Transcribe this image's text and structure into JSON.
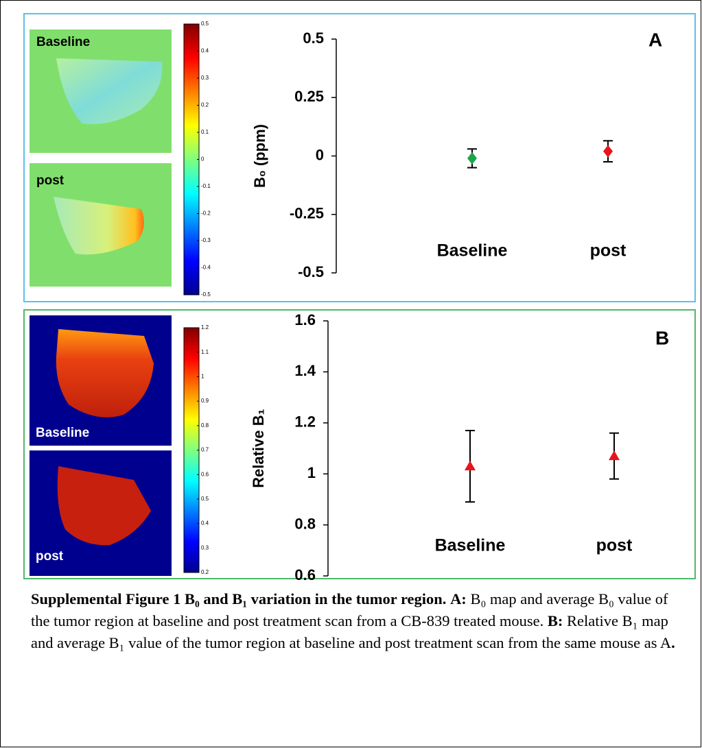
{
  "panels": [
    {
      "letter": "A",
      "image_labels": [
        "Baseline",
        "post"
      ],
      "colorbar_lim": [
        -0.5,
        0.5
      ],
      "colorbar_ticks": [
        0.5,
        0.4,
        0.3,
        0.2,
        0.1,
        0,
        -0.1,
        -0.2,
        -0.3,
        -0.4,
        -0.5
      ]
    },
    {
      "letter": "B",
      "image_labels": [
        "Baseline",
        "post"
      ],
      "colorbar_lim": [
        0.2,
        1.2
      ],
      "colorbar_ticks": [
        1.2,
        1.1,
        1,
        0.9,
        0.8,
        0.7,
        0.6,
        0.5,
        0.4,
        0.3,
        0.2
      ]
    }
  ],
  "chart_data": [
    {
      "type": "errorbar",
      "ylabel": "B₀ (ppm)",
      "categories": [
        "Baseline",
        "post"
      ],
      "values": [
        -0.01,
        0.02
      ],
      "errors": [
        0.04,
        0.045
      ],
      "colors": [
        "#1aa64a",
        "#e8141c"
      ],
      "marker": "diamond",
      "ylim": [
        -0.5,
        0.5
      ],
      "yticks": [
        -0.5,
        -0.25,
        0,
        0.25,
        0.5
      ]
    },
    {
      "type": "errorbar",
      "ylabel": "Relative B₁",
      "categories": [
        "Baseline",
        "post"
      ],
      "values": [
        1.03,
        1.07
      ],
      "errors": [
        0.14,
        0.09
      ],
      "colors": [
        "#e8141c",
        "#e8141c"
      ],
      "marker": "triangle",
      "ylim": [
        0.6,
        1.6
      ],
      "yticks": [
        0.6,
        0.8,
        1,
        1.2,
        1.4,
        1.6
      ]
    }
  ],
  "caption": [
    "Supplemental Figure 1 B₀ and B₁ variation in the tumor region.",
    "A:",
    "B₀ map and average B₀ value of the tumor region at baseline and post treatment scan from a CB-839 treated mouse.",
    "B:",
    "Relative B₁ map and average B₁ value of the tumor region at baseline and post treatment scan from the same mouse as A",
    "."
  ]
}
